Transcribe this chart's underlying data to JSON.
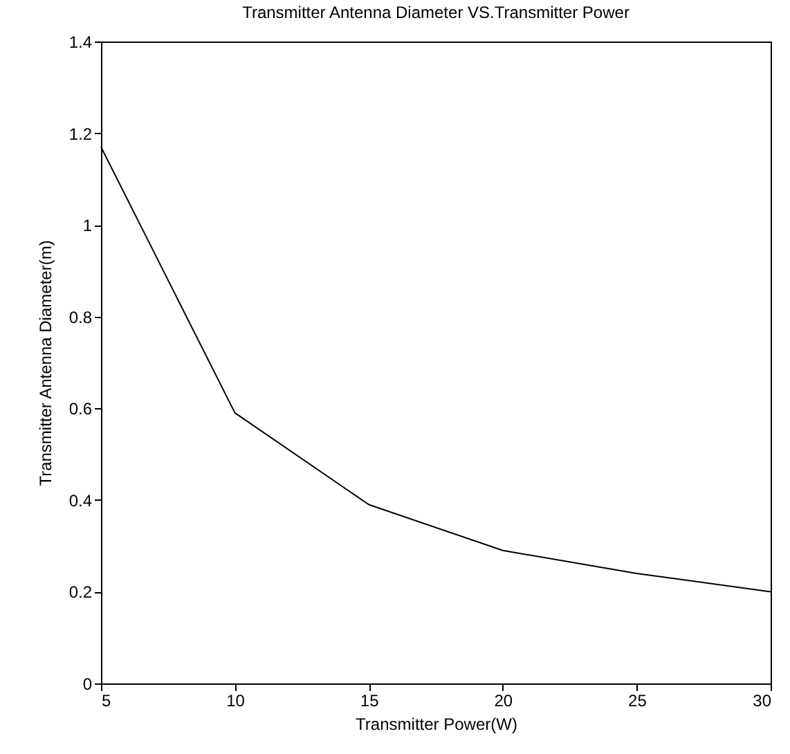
{
  "chart_data": {
    "type": "line",
    "title": "Transmitter Antenna Diameter VS.Transmitter Power",
    "xlabel": "Transmitter Power(W)",
    "ylabel": "Transmitter Antenna Diameter(m)",
    "x": [
      5,
      10,
      15,
      20,
      25,
      30
    ],
    "series": [
      {
        "color": "#000000",
        "values": [
          1.17,
          0.59,
          0.39,
          0.29,
          0.24,
          0.2
        ]
      }
    ],
    "xlim": [
      5,
      30
    ],
    "xticks": [
      5,
      10,
      15,
      20,
      25,
      30
    ],
    "ylim": [
      0,
      1.4
    ],
    "yticks": [
      0,
      0.2,
      0.4,
      0.6,
      0.8,
      1,
      1.2,
      1.4
    ],
    "grid": false,
    "line_style": "solid"
  }
}
